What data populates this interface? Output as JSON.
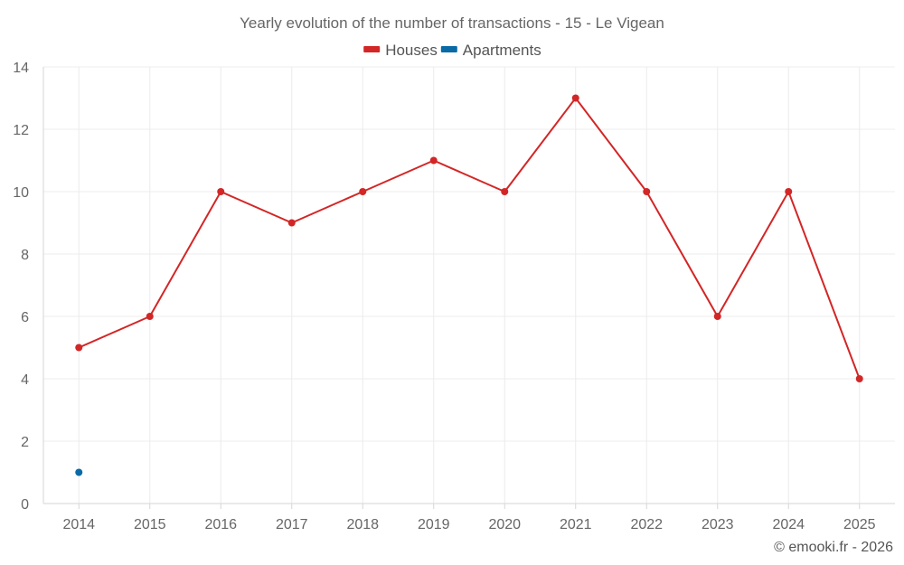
{
  "chart_data": {
    "type": "line",
    "title": "Yearly evolution of the number of transactions - 15 - Le Vigean",
    "categories": [
      "2014",
      "2015",
      "2016",
      "2017",
      "2018",
      "2019",
      "2020",
      "2021",
      "2022",
      "2023",
      "2024",
      "2025"
    ],
    "series": [
      {
        "name": "Houses",
        "color": "#d32626",
        "values": [
          5,
          6,
          10,
          9,
          10,
          11,
          10,
          13,
          10,
          6,
          10,
          4
        ]
      },
      {
        "name": "Apartments",
        "color": "#0a6aa6",
        "values": [
          1,
          null,
          null,
          null,
          null,
          null,
          null,
          null,
          null,
          null,
          null,
          null
        ]
      }
    ],
    "ylim": [
      0,
      14
    ],
    "yticks": [
      0,
      2,
      4,
      6,
      8,
      10,
      12,
      14
    ],
    "xlabel": "",
    "ylabel": "",
    "grid": true,
    "legend_position": "top-center"
  },
  "credit": "© emooki.fr - 2026"
}
